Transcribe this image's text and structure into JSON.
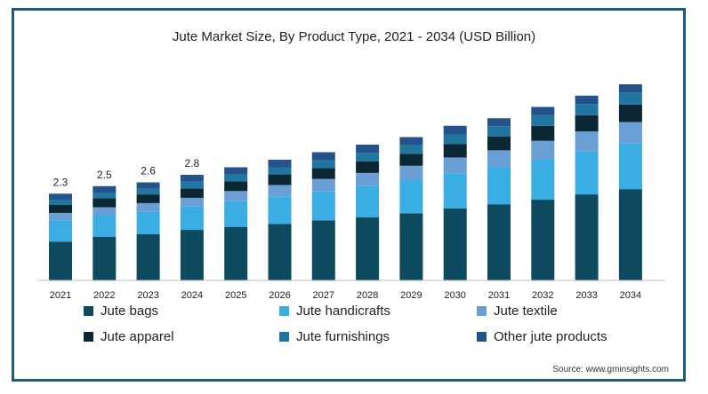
{
  "chart_data": {
    "type": "bar",
    "stacked": true,
    "title": "Jute Market Size, By Product Type, 2021 - 2034 (USD Billion)",
    "xlabel": "",
    "ylabel": "",
    "categories": [
      "2021",
      "2022",
      "2023",
      "2024",
      "2025",
      "2026",
      "2027",
      "2028",
      "2029",
      "2030",
      "2031",
      "2032",
      "2033",
      "2034"
    ],
    "totals": [
      2.3,
      2.5,
      2.6,
      2.8,
      3.0,
      3.2,
      3.4,
      3.6,
      3.8,
      4.1,
      4.3,
      4.6,
      4.9,
      5.2
    ],
    "total_labels": [
      "2.3",
      "2.5",
      "2.6",
      "2.8",
      "",
      "",
      "",
      "",
      "",
      "",
      "",
      "",
      "",
      ""
    ],
    "ylim": [
      0,
      5.2
    ],
    "grid": false,
    "legend_position": "bottom",
    "series": [
      {
        "name": "Jute bags",
        "color": "#0d4a5f",
        "values": [
          1.03,
          1.16,
          1.23,
          1.34,
          1.42,
          1.5,
          1.59,
          1.67,
          1.78,
          1.91,
          2.02,
          2.14,
          2.28,
          2.42
        ]
      },
      {
        "name": "Jute handicrafts",
        "color": "#3aaee2",
        "values": [
          0.56,
          0.57,
          0.59,
          0.62,
          0.68,
          0.73,
          0.78,
          0.84,
          0.89,
          0.93,
          0.99,
          1.07,
          1.14,
          1.22
        ]
      },
      {
        "name": "Jute textile",
        "color": "#6a9fd6",
        "values": [
          0.2,
          0.21,
          0.23,
          0.23,
          0.27,
          0.3,
          0.32,
          0.34,
          0.37,
          0.42,
          0.44,
          0.49,
          0.53,
          0.56
        ]
      },
      {
        "name": "Jute apparel",
        "color": "#0c2734",
        "values": [
          0.21,
          0.24,
          0.23,
          0.25,
          0.26,
          0.28,
          0.29,
          0.31,
          0.32,
          0.36,
          0.37,
          0.4,
          0.43,
          0.46
        ]
      },
      {
        "name": "Jute furnishings",
        "color": "#2076a0",
        "values": [
          0.14,
          0.15,
          0.15,
          0.18,
          0.18,
          0.19,
          0.21,
          0.22,
          0.23,
          0.25,
          0.27,
          0.28,
          0.3,
          0.32
        ]
      },
      {
        "name": "Other jute products",
        "color": "#24528a",
        "values": [
          0.16,
          0.17,
          0.17,
          0.18,
          0.19,
          0.2,
          0.21,
          0.22,
          0.21,
          0.23,
          0.21,
          0.22,
          0.22,
          0.22
        ]
      }
    ]
  },
  "source": "Source: www.gminsights.com"
}
